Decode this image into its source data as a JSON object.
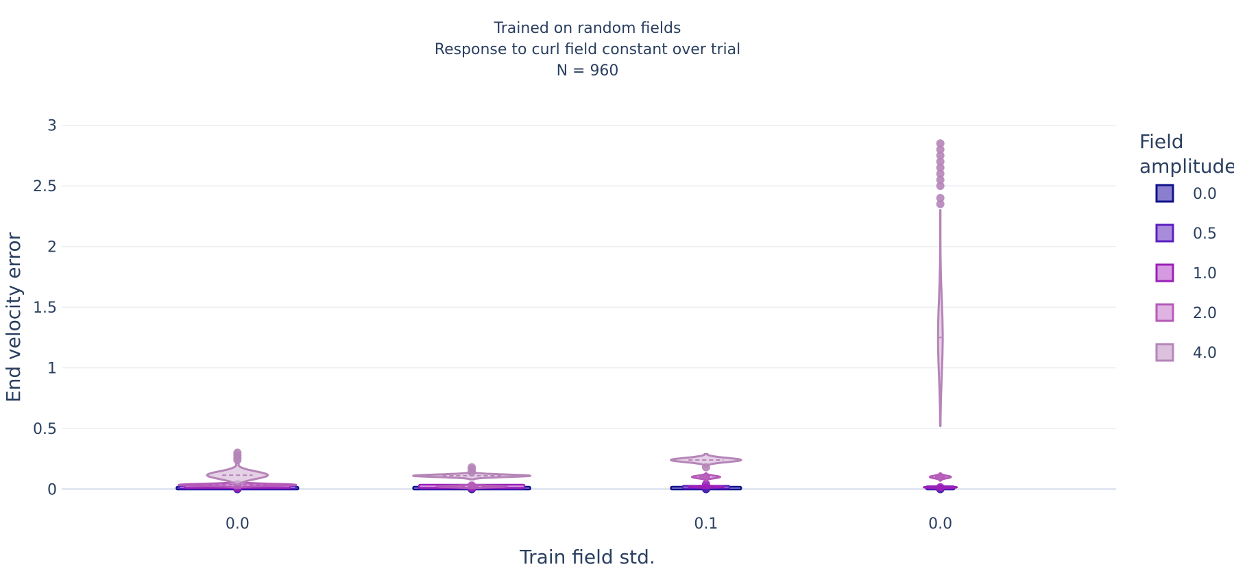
{
  "chart_data": {
    "type": "violin",
    "title_lines": [
      "Trained on random fields",
      "Response to curl field constant over trial",
      "N = 960"
    ],
    "xlabel": "Train field std.",
    "ylabel": "End velocity error",
    "ylim": [
      -0.15,
      3.1
    ],
    "yticks": [
      0,
      0.5,
      1,
      1.5,
      2,
      2.5,
      3
    ],
    "ytick_labels": [
      "0",
      "0.5",
      "1",
      "1.5",
      "2",
      "2.5",
      "3"
    ],
    "categories": [
      "0.0",
      "0.1",
      "0.0"
    ],
    "category_slots": [
      0,
      2,
      3
    ],
    "slot_count": 4,
    "grid": true,
    "legend_title": "Field amplitude",
    "legend_title_lines": [
      "Field",
      "amplitude"
    ],
    "legend_position": "right",
    "series": [
      {
        "name": "0.0",
        "color": "#10128a",
        "fill": "#8a7fcf",
        "violins": [
          {
            "slot": 0,
            "median": 0.002,
            "q1": 0.001,
            "q3": 0.004,
            "min": 0.0,
            "max": 0.008,
            "width": 0.52,
            "outliers": [
              0.0
            ]
          },
          {
            "slot": 1,
            "median": 0.002,
            "q1": 0.001,
            "q3": 0.004,
            "min": 0.0,
            "max": 0.008,
            "width": 0.5,
            "outliers": [
              0.0
            ]
          },
          {
            "slot": 2,
            "median": 0.002,
            "q1": 0.001,
            "q3": 0.004,
            "min": 0.0,
            "max": 0.008,
            "width": 0.3,
            "outliers": [
              0.0
            ]
          },
          {
            "slot": 3,
            "median": 0.002,
            "q1": 0.001,
            "q3": 0.004,
            "min": 0.0,
            "max": 0.008,
            "width": 0.12,
            "outliers": [
              0.0
            ]
          }
        ]
      },
      {
        "name": "0.5",
        "color": "#5b1fbf",
        "fill": "#a98bdb",
        "violins": [
          {
            "slot": 0,
            "median": 0.006,
            "q1": 0.004,
            "q3": 0.009,
            "min": 0.002,
            "max": 0.014,
            "width": 0.5,
            "outliers": [
              0.003
            ]
          },
          {
            "slot": 1,
            "median": 0.006,
            "q1": 0.004,
            "q3": 0.009,
            "min": 0.002,
            "max": 0.014,
            "width": 0.45,
            "outliers": [
              0.005
            ]
          },
          {
            "slot": 2,
            "median": 0.008,
            "q1": 0.006,
            "q3": 0.011,
            "min": 0.004,
            "max": 0.016,
            "width": 0.2,
            "outliers": [
              0.006
            ]
          },
          {
            "slot": 3,
            "median": 0.006,
            "q1": 0.004,
            "q3": 0.009,
            "min": 0.002,
            "max": 0.012,
            "width": 0.12,
            "outliers": [
              0.003
            ]
          }
        ]
      },
      {
        "name": "1.0",
        "color": "#9a20b8",
        "fill": "#d69ae0",
        "violins": [
          {
            "slot": 0,
            "median": 0.012,
            "q1": 0.009,
            "q3": 0.016,
            "min": 0.005,
            "max": 0.025,
            "width": 0.45,
            "outliers": [
              0.008
            ]
          },
          {
            "slot": 1,
            "median": 0.012,
            "q1": 0.009,
            "q3": 0.016,
            "min": 0.005,
            "max": 0.025,
            "width": 0.45,
            "outliers": [
              0.012
            ]
          },
          {
            "slot": 2,
            "median": 0.02,
            "q1": 0.015,
            "q3": 0.026,
            "min": 0.01,
            "max": 0.035,
            "width": 0.15,
            "outliers": [
              0.04
            ]
          },
          {
            "slot": 3,
            "median": 0.015,
            "q1": 0.01,
            "q3": 0.02,
            "min": 0.005,
            "max": 0.03,
            "width": 0.14,
            "outliers": [
              0.015
            ]
          }
        ]
      },
      {
        "name": "2.0",
        "color": "#b55ab8",
        "fill": "#e0b3e3",
        "violins": [
          {
            "slot": 0,
            "median": 0.035,
            "q1": 0.025,
            "q3": 0.045,
            "min": 0.01,
            "max": 0.06,
            "width": 0.5,
            "outliers": [
              0.04
            ]
          },
          {
            "slot": 1,
            "median": 0.022,
            "q1": 0.015,
            "q3": 0.03,
            "min": 0.008,
            "max": 0.045,
            "width": 0.3,
            "outliers": [
              0.03
            ]
          },
          {
            "slot": 2,
            "median": 0.1,
            "q1": 0.09,
            "q3": 0.11,
            "min": 0.07,
            "max": 0.13,
            "width": 0.12,
            "outliers": [
              0.1
            ]
          },
          {
            "slot": 3,
            "median": 0.1,
            "q1": 0.09,
            "q3": 0.11,
            "min": 0.07,
            "max": 0.13,
            "width": 0.09,
            "outliers": [
              0.1
            ]
          }
        ]
      },
      {
        "name": "4.0",
        "color": "#b585b8",
        "fill": "#dcc1de",
        "violins": [
          {
            "slot": 0,
            "median": 0.115,
            "q1": 0.07,
            "q3": 0.15,
            "min": 0.04,
            "max": 0.22,
            "width": 0.26,
            "outliers": [
              0.24,
              0.26,
              0.28,
              0.3
            ]
          },
          {
            "slot": 1,
            "median": 0.11,
            "q1": 0.1,
            "q3": 0.12,
            "min": 0.08,
            "max": 0.14,
            "width": 0.5,
            "outliers": [
              0.14,
              0.16,
              0.18
            ]
          },
          {
            "slot": 2,
            "median": 0.24,
            "q1": 0.22,
            "q3": 0.26,
            "min": 0.19,
            "max": 0.29,
            "width": 0.3,
            "outliers": [
              0.18
            ]
          },
          {
            "slot": 3,
            "median": 1.25,
            "q1": 0.95,
            "q3": 1.35,
            "min": 0.52,
            "max": 2.3,
            "width": 0.02,
            "outliers": [
              2.35,
              2.4,
              2.5,
              2.55,
              2.6,
              2.65,
              2.7,
              2.75,
              2.8,
              2.85
            ]
          }
        ]
      }
    ]
  }
}
